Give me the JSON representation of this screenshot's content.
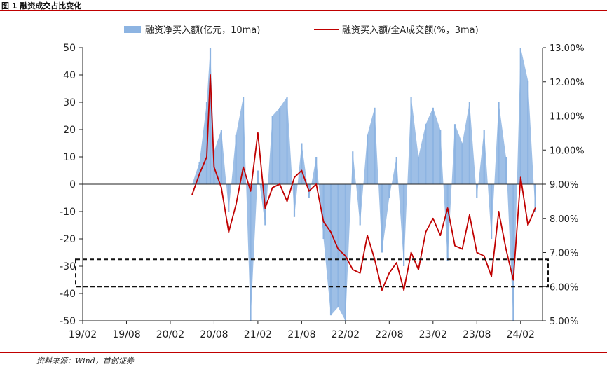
{
  "figure": {
    "title": "图 1 融资成交占比变化",
    "source": "资料来源：Wind，首创证券"
  },
  "colors": {
    "bar": "#8db4e2",
    "line": "#c00000",
    "axis": "#222222",
    "box": "#111111",
    "rule": "#c00000"
  },
  "chart_data": {
    "type": "area",
    "title": "",
    "x_ticks": [
      "19/02",
      "19/08",
      "20/02",
      "20/08",
      "21/02",
      "21/08",
      "22/02",
      "22/08",
      "23/02",
      "23/08",
      "24/02"
    ],
    "y_left_ticks": [
      "50",
      "40",
      "30",
      "20",
      "10",
      "0",
      "-10",
      "-20",
      "-30",
      "-40",
      "-50"
    ],
    "y_right_ticks": [
      "13.00%",
      "12.00%",
      "11.00%",
      "10.00%",
      "9.00%",
      "8.00%",
      "7.00%",
      "6.00%",
      "5.00%"
    ],
    "ylim_left": [
      -50,
      50
    ],
    "ylim_right": [
      5.0,
      13.0
    ],
    "legend_position": "top-center",
    "annotations": [
      "dashed box highlighting the 6.0%–6.8% range of the right axis"
    ],
    "series": [
      {
        "name": "融资净买入额(亿元，10ma)",
        "axis": "left",
        "render": "area",
        "x": [
          "2020/05",
          "2020/06",
          "2020/07",
          "2020/07",
          "2020/08",
          "2020/09",
          "2020/10",
          "2020/11",
          "2020/12",
          "2021/01",
          "2021/02",
          "2021/03",
          "2021/04",
          "2021/05",
          "2021/06",
          "2021/07",
          "2021/08",
          "2021/09",
          "2021/10",
          "2021/11",
          "2021/12",
          "2022/01",
          "2022/02",
          "2022/03",
          "2022/04",
          "2022/05",
          "2022/06",
          "2022/07",
          "2022/08",
          "2022/09",
          "2022/10",
          "2022/11",
          "2022/12",
          "2023/01",
          "2023/02",
          "2023/03",
          "2023/04",
          "2023/05",
          "2023/06",
          "2023/07",
          "2023/08",
          "2023/09",
          "2023/10",
          "2023/11",
          "2023/12",
          "2024/01",
          "2024/02",
          "2024/03",
          "2024/04"
        ],
        "values": [
          0,
          8,
          30,
          50,
          12,
          20,
          -10,
          18,
          32,
          -50,
          5,
          -15,
          25,
          28,
          32,
          -12,
          15,
          -5,
          10,
          -20,
          -48,
          -45,
          -50,
          12,
          -15,
          18,
          28,
          -25,
          -5,
          10,
          -30,
          32,
          10,
          22,
          28,
          20,
          -28,
          22,
          15,
          30,
          -5,
          20,
          -20,
          30,
          10,
          -50,
          50,
          38,
          -10
        ]
      },
      {
        "name": "融资买入额/全A成交额(%，3ma)",
        "axis": "right",
        "render": "line",
        "x": [
          "2020/05",
          "2020/06",
          "2020/07",
          "2020/07",
          "2020/08",
          "2020/09",
          "2020/10",
          "2020/11",
          "2020/12",
          "2021/01",
          "2021/02",
          "2021/03",
          "2021/04",
          "2021/05",
          "2021/06",
          "2021/07",
          "2021/08",
          "2021/09",
          "2021/10",
          "2021/11",
          "2021/12",
          "2022/01",
          "2022/02",
          "2022/03",
          "2022/04",
          "2022/05",
          "2022/06",
          "2022/07",
          "2022/08",
          "2022/09",
          "2022/10",
          "2022/11",
          "2022/12",
          "2023/01",
          "2023/02",
          "2023/03",
          "2023/04",
          "2023/05",
          "2023/06",
          "2023/07",
          "2023/08",
          "2023/09",
          "2023/10",
          "2023/11",
          "2023/12",
          "2024/01",
          "2024/02",
          "2024/03",
          "2024/04"
        ],
        "values": [
          8.7,
          9.3,
          9.8,
          12.2,
          9.5,
          8.9,
          7.6,
          8.4,
          9.5,
          8.8,
          10.5,
          8.3,
          8.9,
          9.0,
          8.5,
          9.2,
          9.4,
          8.8,
          9.0,
          7.9,
          7.6,
          7.1,
          6.9,
          6.5,
          6.4,
          7.5,
          6.8,
          5.9,
          6.4,
          6.7,
          5.9,
          7.0,
          6.5,
          7.6,
          8.0,
          7.5,
          8.3,
          7.2,
          7.1,
          8.1,
          7.0,
          6.9,
          6.3,
          8.2,
          7.1,
          6.2,
          9.2,
          7.8,
          8.3
        ]
      }
    ]
  }
}
